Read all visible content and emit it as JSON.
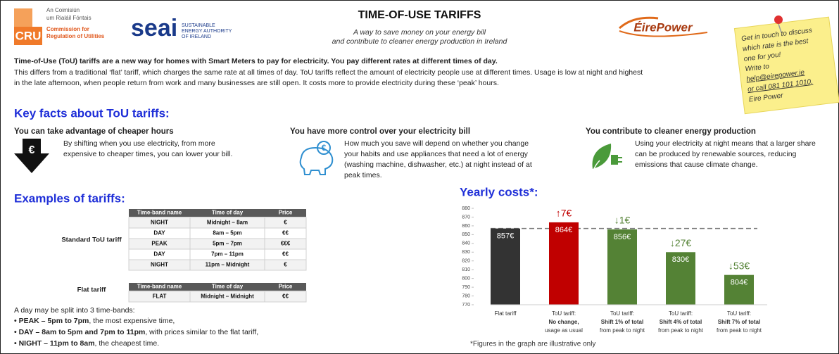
{
  "header": {
    "cru": {
      "mark": "CRU",
      "lines": [
        "An Coimisiún",
        "um Rialáil Fóntais",
        "Commission for",
        "Regulation of Utilities"
      ]
    },
    "seai": {
      "mark": "seai",
      "lines": [
        "SUSTAINABLE",
        "ENERGY AUTHORITY",
        "OF IRELAND"
      ]
    },
    "eirepower": "ÉirePower",
    "title": "TIME-OF-USE TARIFFS",
    "subtitle": [
      "A way to save money on your energy bill",
      "and contribute to cleaner energy production in Ireland"
    ]
  },
  "note": {
    "lines": [
      "Get in touch to discuss",
      "which rate is the best",
      "one for you!",
      "Write to",
      "help@eirepower.ie",
      "or call 081 101 1010.",
      "Eire Power"
    ]
  },
  "intro": {
    "bold": "Time-of-Use (ToU) tariffs are a new way for homes with Smart Meters to pay for electricity. You pay different rates at different times of day.",
    "lines": [
      "This differs from a traditional ‘flat’ tariff, which charges the same rate at all times of day. ToU tariffs reflect the amount of electricity people use at different times. Usage is low at night and highest",
      "in the late afternoon, when people return from work and many businesses are still open. It costs more to provide electricity during these ‘peak’ hours."
    ]
  },
  "key_facts": {
    "heading": "Key facts about ToU tariffs:",
    "items": [
      {
        "title": "You can take advantage of cheaper hours",
        "icon_text": "€",
        "lines": [
          "By shifting when you use electricity, from more",
          "expensive to cheaper times, you can lower your bill."
        ]
      },
      {
        "title": "You have more control over your electricity bill",
        "icon_text": "€",
        "lines": [
          "How much you save will depend on whether you change",
          "your habits and use appliances that need a lot of energy",
          "(washing machine, dishwasher, etc.) at night instead of at",
          "peak times."
        ]
      },
      {
        "title": "You contribute to cleaner energy production",
        "lines": [
          "Using your electricity at night means that a larger share",
          "can be produced by renewable sources, reducing",
          "emissions that cause climate change."
        ]
      }
    ]
  },
  "examples": {
    "heading": "Examples of tariffs:",
    "tables": [
      {
        "label": "Standard ToU tariff",
        "header": [
          "Time-band name",
          "Time of day",
          "Price"
        ],
        "rows": [
          [
            "NIGHT",
            "Midnight – 8am",
            "€"
          ],
          [
            "DAY",
            "8am – 5pm",
            "€€"
          ],
          [
            "PEAK",
            "5pm – 7pm",
            "€€€"
          ],
          [
            "DAY",
            "7pm – 11pm",
            "€€"
          ],
          [
            "NIGHT",
            "11pm – Midnight",
            "€"
          ]
        ]
      },
      {
        "label": "Flat tariff",
        "header": [
          "Time-band name",
          "Time of day",
          "Price"
        ],
        "rows": [
          [
            "FLAT",
            "Midnight – Midnight",
            "€€"
          ]
        ]
      }
    ],
    "intro": "A day may be split into 3 time-bands:",
    "bands": [
      {
        "bold": "• PEAK – 5pm to 7pm",
        "text": ", the most expensive time,"
      },
      {
        "bold": "• DAY – 8am to 5pm and 7pm to 11pm",
        "text": ", with prices similar to the flat tariff,"
      },
      {
        "bold": "• NIGHT – 11pm to 8am",
        "text": ", the cheapest time."
      }
    ]
  },
  "chart_data": {
    "type": "bar",
    "title": "Yearly costs*:",
    "categories": [
      [
        "Flat tariff"
      ],
      [
        "ToU tariff:",
        "No change,",
        "usage as usual"
      ],
      [
        "ToU tariff:",
        "Shift 1% of total",
        "from peak to night"
      ],
      [
        "ToU tariff:",
        "Shift 4% of total",
        "from peak to night"
      ],
      [
        "ToU tariff:",
        "Shift 7% of total",
        "from peak to night"
      ]
    ],
    "values": [
      857,
      864,
      856,
      830,
      804
    ],
    "value_labels": [
      "857€",
      "864€",
      "856€",
      "830€",
      "804€"
    ],
    "change_labels": [
      null,
      "↑7€",
      "↓1€",
      "↓27€",
      "↓53€"
    ],
    "colors": [
      "#333333",
      "#c00000",
      "#548235",
      "#548235",
      "#548235"
    ],
    "ylim": [
      770,
      880
    ],
    "yticks": [
      770,
      780,
      790,
      800,
      810,
      820,
      830,
      840,
      850,
      860,
      870,
      880
    ],
    "footnote": "*Figures in the graph are illustrative only"
  }
}
